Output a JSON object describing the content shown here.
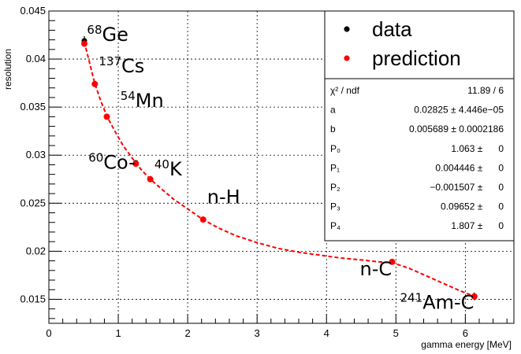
{
  "chart_data": {
    "type": "scatter",
    "xlabel": "gamma energy [MeV]",
    "ylabel": "resolution",
    "xlim": [
      0,
      6.7
    ],
    "ylim": [
      0.0125,
      0.045
    ],
    "x_ticks": [
      "0",
      "1",
      "2",
      "3",
      "4",
      "5",
      "6"
    ],
    "y_ticks": [
      "0.015",
      "0.02",
      "0.025",
      "0.03",
      "0.035",
      "0.04",
      "0.045"
    ],
    "grid": true,
    "series": [
      {
        "name": "data",
        "color": "#000000",
        "points": [
          {
            "x": 0.511,
            "y": 0.0419,
            "err": 0.0005
          },
          {
            "x": 0.662,
            "y": 0.0374,
            "err": 0.0002
          },
          {
            "x": 0.835,
            "y": 0.034,
            "err": 0.0002
          },
          {
            "x": 1.253,
            "y": 0.0292,
            "err": 0.0002
          },
          {
            "x": 1.461,
            "y": 0.0275,
            "err": 0.0002
          },
          {
            "x": 2.223,
            "y": 0.0233,
            "err": 0.0002
          },
          {
            "x": 4.945,
            "y": 0.0189,
            "err": 0.0002
          },
          {
            "x": 6.13,
            "y": 0.0153,
            "err": 0.0004
          }
        ]
      },
      {
        "name": "prediction",
        "color": "#ff0000",
        "points": [
          {
            "x": 0.511,
            "y": 0.0416
          },
          {
            "x": 0.662,
            "y": 0.0374
          },
          {
            "x": 0.835,
            "y": 0.034
          },
          {
            "x": 1.253,
            "y": 0.0291
          },
          {
            "x": 1.461,
            "y": 0.0275
          },
          {
            "x": 2.223,
            "y": 0.0233
          },
          {
            "x": 4.945,
            "y": 0.0189
          },
          {
            "x": 6.13,
            "y": 0.0153
          }
        ]
      }
    ],
    "fit_curve": {
      "color": "#ff0000",
      "points": [
        [
          0.51,
          0.0418
        ],
        [
          0.58,
          0.0398
        ],
        [
          0.66,
          0.0375
        ],
        [
          0.75,
          0.0356
        ],
        [
          0.84,
          0.034
        ],
        [
          0.95,
          0.0325
        ],
        [
          1.07,
          0.031
        ],
        [
          1.2,
          0.0297
        ],
        [
          1.33,
          0.0285
        ],
        [
          1.46,
          0.0275
        ],
        [
          1.62,
          0.0265
        ],
        [
          1.8,
          0.0254
        ],
        [
          2.0,
          0.0244
        ],
        [
          2.22,
          0.0233
        ],
        [
          2.45,
          0.0224
        ],
        [
          2.7,
          0.0216
        ],
        [
          3.0,
          0.0209
        ],
        [
          3.3,
          0.0203
        ],
        [
          3.6,
          0.0199
        ],
        [
          3.9,
          0.0196
        ],
        [
          4.2,
          0.0193
        ],
        [
          4.5,
          0.0191
        ],
        [
          4.75,
          0.0189
        ],
        [
          4.95,
          0.0188
        ],
        [
          5.2,
          0.0182
        ],
        [
          5.45,
          0.0174
        ],
        [
          5.7,
          0.0166
        ],
        [
          5.92,
          0.0159
        ],
        [
          6.13,
          0.0153
        ]
      ]
    },
    "annotations": [
      {
        "sup": "68",
        "text": "Ge",
        "x": 0.55,
        "y": 0.0419
      },
      {
        "sup": "137",
        "text": "Cs",
        "x": 0.72,
        "y": 0.0386
      },
      {
        "sup": "54",
        "text": "Mn",
        "x": 1.03,
        "y": 0.035
      },
      {
        "sup": "60",
        "text": "Co-",
        "x": 0.57,
        "y": 0.0286
      },
      {
        "sup": "40",
        "text": "K",
        "x": 1.52,
        "y": 0.0279
      },
      {
        "sup": "",
        "text": "n-H",
        "x": 2.28,
        "y": 0.025
      },
      {
        "sup": "",
        "text": "n-C",
        "x": 4.48,
        "y": 0.0175
      },
      {
        "sup": "241",
        "text": "Am-C",
        "x": 5.06,
        "y": 0.014
      }
    ],
    "legend": {
      "placement": "top-right",
      "entries": [
        {
          "label": "data",
          "color": "#000000"
        },
        {
          "label": "prediction",
          "color": "#ff0000"
        }
      ]
    },
    "stats_box": {
      "rows": [
        {
          "name": "χ² / ndf",
          "value": "11.89 / 6"
        },
        {
          "name": "a",
          "value": "0.02825 ± 4.446e−05"
        },
        {
          "name": "b",
          "value": "0.005689 ± 0.0002186"
        },
        {
          "name": "P₀",
          "value": "1.063 ±      0"
        },
        {
          "name": "P₁",
          "value": "0.004446 ±      0"
        },
        {
          "name": "P₂",
          "value": "−0.001507 ±      0"
        },
        {
          "name": "P₃",
          "value": "0.09652 ±      0"
        },
        {
          "name": "P₄",
          "value": "1.807 ±      0"
        }
      ]
    }
  }
}
